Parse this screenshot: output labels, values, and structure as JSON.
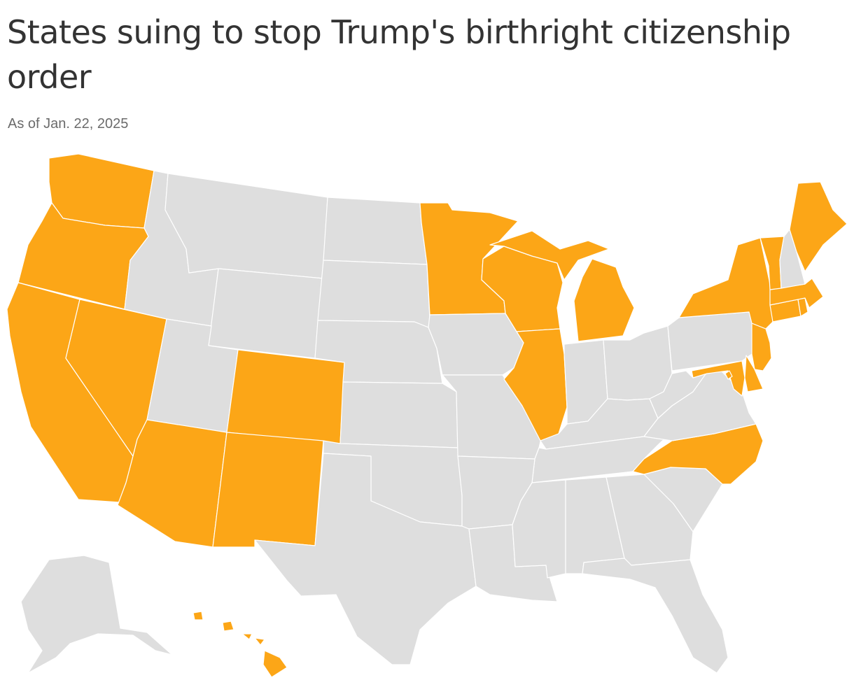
{
  "header": {
    "title": "States suing to stop Trump's birthright citizenship order",
    "subtitle": "As of Jan. 22, 2025"
  },
  "colors": {
    "suing": "#fca617",
    "other": "#dedede",
    "border": "#ffffff",
    "title_text": "#333333",
    "subtitle_text": "#6b6b6b"
  },
  "states": [
    {
      "name": "Washington",
      "suing": true
    },
    {
      "name": "Oregon",
      "suing": true
    },
    {
      "name": "California",
      "suing": true
    },
    {
      "name": "Nevada",
      "suing": true
    },
    {
      "name": "Idaho",
      "suing": false
    },
    {
      "name": "Montana",
      "suing": false
    },
    {
      "name": "Wyoming",
      "suing": false
    },
    {
      "name": "Utah",
      "suing": false
    },
    {
      "name": "Arizona",
      "suing": true
    },
    {
      "name": "Colorado",
      "suing": true
    },
    {
      "name": "New Mexico",
      "suing": true
    },
    {
      "name": "North Dakota",
      "suing": false
    },
    {
      "name": "South Dakota",
      "suing": false
    },
    {
      "name": "Nebraska",
      "suing": false
    },
    {
      "name": "Kansas",
      "suing": false
    },
    {
      "name": "Oklahoma",
      "suing": false
    },
    {
      "name": "Texas",
      "suing": false
    },
    {
      "name": "Minnesota",
      "suing": true
    },
    {
      "name": "Iowa",
      "suing": false
    },
    {
      "name": "Missouri",
      "suing": false
    },
    {
      "name": "Arkansas",
      "suing": false
    },
    {
      "name": "Louisiana",
      "suing": false
    },
    {
      "name": "Wisconsin",
      "suing": true
    },
    {
      "name": "Illinois",
      "suing": true
    },
    {
      "name": "Michigan",
      "suing": true
    },
    {
      "name": "Indiana",
      "suing": false
    },
    {
      "name": "Ohio",
      "suing": false
    },
    {
      "name": "Kentucky",
      "suing": false
    },
    {
      "name": "Tennessee",
      "suing": false
    },
    {
      "name": "Mississippi",
      "suing": false
    },
    {
      "name": "Alabama",
      "suing": false
    },
    {
      "name": "Georgia",
      "suing": false
    },
    {
      "name": "Florida",
      "suing": false
    },
    {
      "name": "South Carolina",
      "suing": false
    },
    {
      "name": "North Carolina",
      "suing": true
    },
    {
      "name": "Virginia",
      "suing": false
    },
    {
      "name": "West Virginia",
      "suing": false
    },
    {
      "name": "Maryland",
      "suing": true
    },
    {
      "name": "Delaware",
      "suing": true
    },
    {
      "name": "New Jersey",
      "suing": true
    },
    {
      "name": "Pennsylvania",
      "suing": false
    },
    {
      "name": "New York",
      "suing": true
    },
    {
      "name": "Connecticut",
      "suing": true
    },
    {
      "name": "Rhode Island",
      "suing": true
    },
    {
      "name": "Massachusetts",
      "suing": true
    },
    {
      "name": "Vermont",
      "suing": true
    },
    {
      "name": "New Hampshire",
      "suing": false
    },
    {
      "name": "Maine",
      "suing": true
    },
    {
      "name": "Alaska",
      "suing": false
    },
    {
      "name": "Hawaii",
      "suing": true
    },
    {
      "name": "District of Columbia",
      "suing": true
    }
  ]
}
